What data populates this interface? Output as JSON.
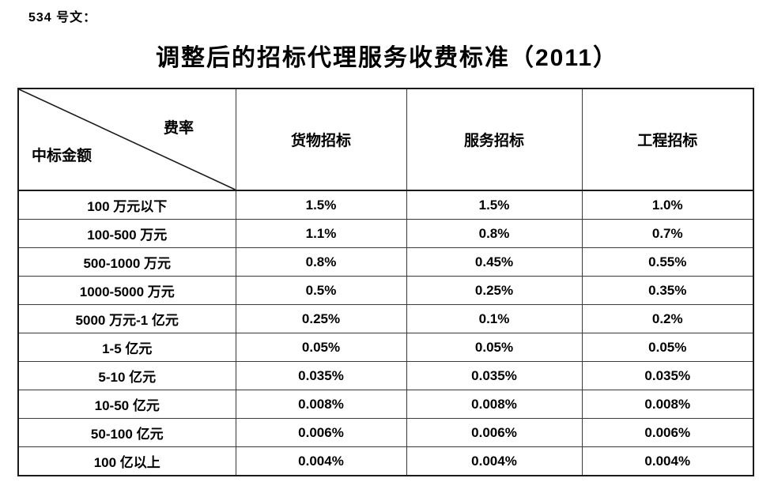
{
  "doc": {
    "doc_number": "534 号文：",
    "title": "调整后的招标代理服务收费标准（2011）"
  },
  "table": {
    "corner": {
      "top_right": "费率",
      "bottom_left": "中标金额"
    },
    "columns": [
      "货物招标",
      "服务招标",
      "工程招标"
    ],
    "rows": [
      {
        "label": "100 万元以下",
        "values": [
          "1.5%",
          "1.5%",
          "1.0%"
        ]
      },
      {
        "label": "100-500 万元",
        "values": [
          "1.1%",
          "0.8%",
          "0.7%"
        ]
      },
      {
        "label": "500-1000 万元",
        "values": [
          "0.8%",
          "0.45%",
          "0.55%"
        ]
      },
      {
        "label": "1000-5000 万元",
        "values": [
          "0.5%",
          "0.25%",
          "0.35%"
        ]
      },
      {
        "label": "5000 万元-1 亿元",
        "values": [
          "0.25%",
          "0.1%",
          "0.2%"
        ]
      },
      {
        "label": "1-5 亿元",
        "values": [
          "0.05%",
          "0.05%",
          "0.05%"
        ]
      },
      {
        "label": "5-10 亿元",
        "values": [
          "0.035%",
          "0.035%",
          "0.035%"
        ]
      },
      {
        "label": "10-50 亿元",
        "values": [
          "0.008%",
          "0.008%",
          "0.008%"
        ]
      },
      {
        "label": "50-100 亿元",
        "values": [
          "0.006%",
          "0.006%",
          "0.006%"
        ]
      },
      {
        "label": "100 亿以上",
        "values": [
          "0.004%",
          "0.004%",
          "0.004%"
        ]
      }
    ]
  },
  "colors": {
    "text": "#000000",
    "border_outer": "#1a1a1a",
    "border_inner": "#3a3a3a",
    "background": "#ffffff"
  }
}
